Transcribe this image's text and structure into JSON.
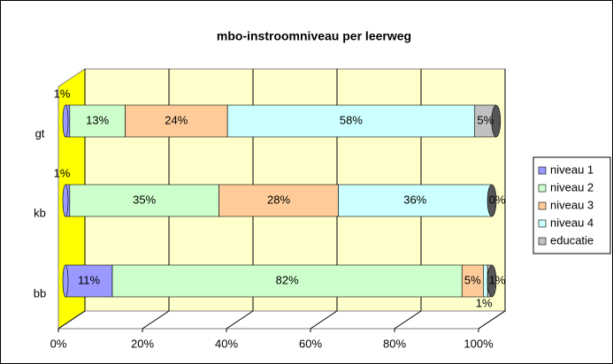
{
  "chart_data": {
    "type": "bar",
    "orientation": "horizontal",
    "stacked": true,
    "title": "mbo-instroomniveau per leerweg",
    "categories": [
      "gt",
      "kb",
      "bb"
    ],
    "series": [
      {
        "name": "niveau 1",
        "color": "#9999ff",
        "values": [
          1,
          1,
          11
        ],
        "value_labels": [
          "1%",
          "1%",
          "11%"
        ]
      },
      {
        "name": "niveau 2",
        "color": "#ccffcc",
        "values": [
          13,
          35,
          82
        ],
        "value_labels": [
          "13%",
          "35%",
          "82%"
        ]
      },
      {
        "name": "niveau 3",
        "color": "#ffcc99",
        "values": [
          24,
          28,
          5
        ],
        "value_labels": [
          "24%",
          "28%",
          "5%"
        ]
      },
      {
        "name": "niveau 4",
        "color": "#ccffff",
        "values": [
          58,
          36,
          1
        ],
        "value_labels": [
          "58%",
          "36%",
          "1%"
        ]
      },
      {
        "name": "educatie",
        "color": "#c0c0c0",
        "values": [
          5,
          0,
          1
        ],
        "value_labels": [
          "5%",
          "0%",
          "1%"
        ]
      }
    ],
    "xlim": [
      0,
      100
    ],
    "xticks": [
      {
        "value": 0,
        "label": "0%"
      },
      {
        "value": 20,
        "label": "20%"
      },
      {
        "value": 40,
        "label": "40%"
      },
      {
        "value": 60,
        "label": "60%"
      },
      {
        "value": 80,
        "label": "80%"
      },
      {
        "value": 100,
        "label": "100%"
      }
    ],
    "grid": true,
    "legend": "right"
  }
}
